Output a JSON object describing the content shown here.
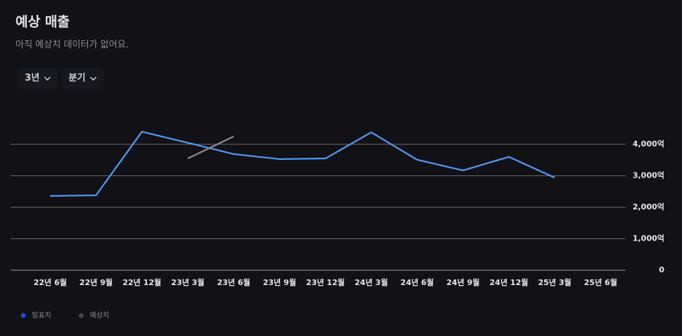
{
  "header": {
    "title": "예상 매출",
    "subtitle": "아직 예상치 데이터가 없어요."
  },
  "controls": [
    "3년",
    "분기"
  ],
  "chart_data": {
    "type": "line",
    "categories": [
      "22년 6월",
      "22년 9월",
      "22년 12월",
      "23년 3월",
      "23년 6월",
      "23년 9월",
      "23년 12월",
      "24년 3월",
      "24년 6월",
      "24년 9월",
      "24년 12월",
      "25년 3월",
      "25년 6월"
    ],
    "series": [
      {
        "name": "발표치",
        "color": "#4f9cf5",
        "legend_color": "#1f4fd1",
        "values": [
          2360,
          2380,
          4400,
          4050,
          3690,
          3530,
          3550,
          4380,
          3510,
          3170,
          3600,
          2940,
          null
        ]
      },
      {
        "name": "예상치",
        "color": "#8c8c8c",
        "legend_color": "#444448",
        "values": [
          null,
          null,
          null,
          3550,
          4250,
          null,
          null,
          null,
          null,
          null,
          null,
          null,
          null
        ]
      }
    ],
    "ylim": [
      0,
      5000
    ],
    "yticks": [
      0,
      {
        "value": 1000,
        "label": "1,000억"
      },
      {
        "value": 2000,
        "label": "2,000억"
      },
      {
        "value": 3000,
        "label": "3,000억"
      },
      {
        "value": 4000,
        "label": "4,000억"
      }
    ],
    "grid": true
  }
}
